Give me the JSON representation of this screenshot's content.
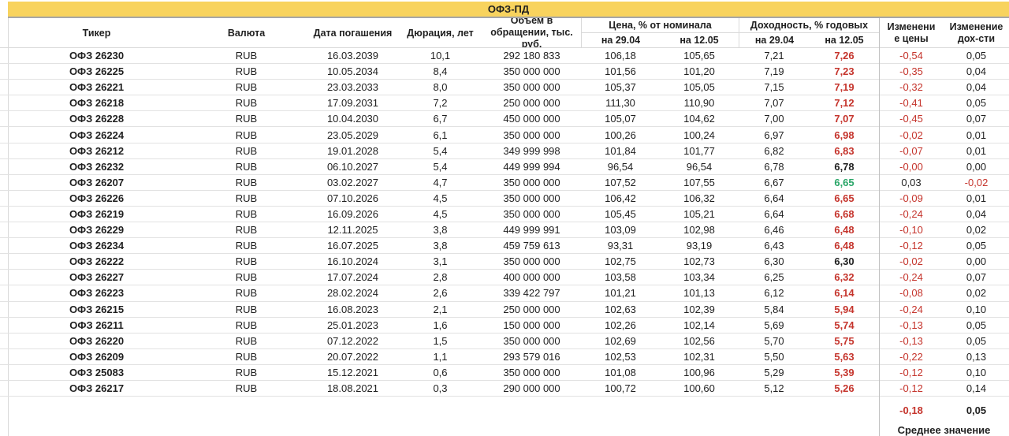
{
  "title": "ОФЗ-ПД",
  "colors": {
    "accent_titlebar": "#f8d35e",
    "negative_red": "#c5342c",
    "positive_green": "#28a567",
    "text": "#1f1f1f"
  },
  "table": {
    "headers": {
      "ticker": "Тикер",
      "currency": "Валюта",
      "maturity": "Дата погашения",
      "duration": "Дюрация, лет",
      "volume": "Объем в\nобращении, тыс.\nруб.",
      "price_group": "Цена, % от номинала",
      "yield_group": "Доходность, % годовых",
      "price_on_2904": "на 29.04",
      "price_on_1205": "на 12.05",
      "yield_on_2904": "на 29.04",
      "yield_on_1205": "на 12.05",
      "price_change": "Изменени\nе цены",
      "yield_change": "Изменение\nдох-сти"
    },
    "rows": [
      {
        "ticker": "ОФЗ 26230",
        "currency": "RUB",
        "maturity": "16.03.2039",
        "duration": "10,1",
        "volume": "292 180 833",
        "price_2904": "106,18",
        "price_1205": "105,65",
        "yield_2904": "7,21",
        "yield_1205": "7,26",
        "yield_1205_color": "red",
        "price_change": "-0,54",
        "price_change_color": "red",
        "yield_change": "0,05",
        "yield_change_color": "black"
      },
      {
        "ticker": "ОФЗ 26225",
        "currency": "RUB",
        "maturity": "10.05.2034",
        "duration": "8,4",
        "volume": "350 000 000",
        "price_2904": "101,56",
        "price_1205": "101,20",
        "yield_2904": "7,19",
        "yield_1205": "7,23",
        "yield_1205_color": "red",
        "price_change": "-0,35",
        "price_change_color": "red",
        "yield_change": "0,04",
        "yield_change_color": "black"
      },
      {
        "ticker": "ОФЗ 26221",
        "currency": "RUB",
        "maturity": "23.03.2033",
        "duration": "8,0",
        "volume": "350 000 000",
        "price_2904": "105,37",
        "price_1205": "105,05",
        "yield_2904": "7,15",
        "yield_1205": "7,19",
        "yield_1205_color": "red",
        "price_change": "-0,32",
        "price_change_color": "red",
        "yield_change": "0,04",
        "yield_change_color": "black"
      },
      {
        "ticker": "ОФЗ 26218",
        "currency": "RUB",
        "maturity": "17.09.2031",
        "duration": "7,2",
        "volume": "250 000 000",
        "price_2904": "111,30",
        "price_1205": "110,90",
        "yield_2904": "7,07",
        "yield_1205": "7,12",
        "yield_1205_color": "red",
        "price_change": "-0,41",
        "price_change_color": "red",
        "yield_change": "0,05",
        "yield_change_color": "black"
      },
      {
        "ticker": "ОФЗ 26228",
        "currency": "RUB",
        "maturity": "10.04.2030",
        "duration": "6,7",
        "volume": "450 000 000",
        "price_2904": "105,07",
        "price_1205": "104,62",
        "yield_2904": "7,00",
        "yield_1205": "7,07",
        "yield_1205_color": "red",
        "price_change": "-0,45",
        "price_change_color": "red",
        "yield_change": "0,07",
        "yield_change_color": "black"
      },
      {
        "ticker": "ОФЗ 26224",
        "currency": "RUB",
        "maturity": "23.05.2029",
        "duration": "6,1",
        "volume": "350 000 000",
        "price_2904": "100,26",
        "price_1205": "100,24",
        "yield_2904": "6,97",
        "yield_1205": "6,98",
        "yield_1205_color": "red",
        "price_change": "-0,02",
        "price_change_color": "red",
        "yield_change": "0,01",
        "yield_change_color": "black"
      },
      {
        "ticker": "ОФЗ 26212",
        "currency": "RUB",
        "maturity": "19.01.2028",
        "duration": "5,4",
        "volume": "349 999 998",
        "price_2904": "101,84",
        "price_1205": "101,77",
        "yield_2904": "6,82",
        "yield_1205": "6,83",
        "yield_1205_color": "red",
        "price_change": "-0,07",
        "price_change_color": "red",
        "yield_change": "0,01",
        "yield_change_color": "black"
      },
      {
        "ticker": "ОФЗ 26232",
        "currency": "RUB",
        "maturity": "06.10.2027",
        "duration": "5,4",
        "volume": "449 999 994",
        "price_2904": "96,54",
        "price_1205": "96,54",
        "yield_2904": "6,78",
        "yield_1205": "6,78",
        "yield_1205_color": "black",
        "price_change": "-0,00",
        "price_change_color": "red",
        "yield_change": "0,00",
        "yield_change_color": "black"
      },
      {
        "ticker": "ОФЗ 26207",
        "currency": "RUB",
        "maturity": "03.02.2027",
        "duration": "4,7",
        "volume": "350 000 000",
        "price_2904": "107,52",
        "price_1205": "107,55",
        "yield_2904": "6,67",
        "yield_1205": "6,65",
        "yield_1205_color": "green",
        "price_change": "0,03",
        "price_change_color": "black",
        "yield_change": "-0,02",
        "yield_change_color": "red"
      },
      {
        "ticker": "ОФЗ 26226",
        "currency": "RUB",
        "maturity": "07.10.2026",
        "duration": "4,5",
        "volume": "350 000 000",
        "price_2904": "106,42",
        "price_1205": "106,32",
        "yield_2904": "6,64",
        "yield_1205": "6,65",
        "yield_1205_color": "red",
        "price_change": "-0,09",
        "price_change_color": "red",
        "yield_change": "0,01",
        "yield_change_color": "black"
      },
      {
        "ticker": "ОФЗ 26219",
        "currency": "RUB",
        "maturity": "16.09.2026",
        "duration": "4,5",
        "volume": "350 000 000",
        "price_2904": "105,45",
        "price_1205": "105,21",
        "yield_2904": "6,64",
        "yield_1205": "6,68",
        "yield_1205_color": "red",
        "price_change": "-0,24",
        "price_change_color": "red",
        "yield_change": "0,04",
        "yield_change_color": "black"
      },
      {
        "ticker": "ОФЗ 26229",
        "currency": "RUB",
        "maturity": "12.11.2025",
        "duration": "3,8",
        "volume": "449 999 991",
        "price_2904": "103,09",
        "price_1205": "102,98",
        "yield_2904": "6,46",
        "yield_1205": "6,48",
        "yield_1205_color": "red",
        "price_change": "-0,10",
        "price_change_color": "red",
        "yield_change": "0,02",
        "yield_change_color": "black"
      },
      {
        "ticker": "ОФЗ 26234",
        "currency": "RUB",
        "maturity": "16.07.2025",
        "duration": "3,8",
        "volume": "459 759 613",
        "price_2904": "93,31",
        "price_1205": "93,19",
        "yield_2904": "6,43",
        "yield_1205": "6,48",
        "yield_1205_color": "red",
        "price_change": "-0,12",
        "price_change_color": "red",
        "yield_change": "0,05",
        "yield_change_color": "black"
      },
      {
        "ticker": "ОФЗ 26222",
        "currency": "RUB",
        "maturity": "16.10.2024",
        "duration": "3,1",
        "volume": "350 000 000",
        "price_2904": "102,75",
        "price_1205": "102,73",
        "yield_2904": "6,30",
        "yield_1205": "6,30",
        "yield_1205_color": "black",
        "price_change": "-0,02",
        "price_change_color": "red",
        "yield_change": "0,00",
        "yield_change_color": "black"
      },
      {
        "ticker": "ОФЗ 26227",
        "currency": "RUB",
        "maturity": "17.07.2024",
        "duration": "2,8",
        "volume": "400 000 000",
        "price_2904": "103,58",
        "price_1205": "103,34",
        "yield_2904": "6,25",
        "yield_1205": "6,32",
        "yield_1205_color": "red",
        "price_change": "-0,24",
        "price_change_color": "red",
        "yield_change": "0,07",
        "yield_change_color": "black"
      },
      {
        "ticker": "ОФЗ 26223",
        "currency": "RUB",
        "maturity": "28.02.2024",
        "duration": "2,6",
        "volume": "339 422 797",
        "price_2904": "101,21",
        "price_1205": "101,13",
        "yield_2904": "6,12",
        "yield_1205": "6,14",
        "yield_1205_color": "red",
        "price_change": "-0,08",
        "price_change_color": "red",
        "yield_change": "0,02",
        "yield_change_color": "black"
      },
      {
        "ticker": "ОФЗ 26215",
        "currency": "RUB",
        "maturity": "16.08.2023",
        "duration": "2,1",
        "volume": "250 000 000",
        "price_2904": "102,63",
        "price_1205": "102,39",
        "yield_2904": "5,84",
        "yield_1205": "5,94",
        "yield_1205_color": "red",
        "price_change": "-0,24",
        "price_change_color": "red",
        "yield_change": "0,10",
        "yield_change_color": "black"
      },
      {
        "ticker": "ОФЗ 26211",
        "currency": "RUB",
        "maturity": "25.01.2023",
        "duration": "1,6",
        "volume": "150 000 000",
        "price_2904": "102,26",
        "price_1205": "102,14",
        "yield_2904": "5,69",
        "yield_1205": "5,74",
        "yield_1205_color": "red",
        "price_change": "-0,13",
        "price_change_color": "red",
        "yield_change": "0,05",
        "yield_change_color": "black"
      },
      {
        "ticker": "ОФЗ 26220",
        "currency": "RUB",
        "maturity": "07.12.2022",
        "duration": "1,5",
        "volume": "350 000 000",
        "price_2904": "102,69",
        "price_1205": "102,56",
        "yield_2904": "5,70",
        "yield_1205": "5,75",
        "yield_1205_color": "red",
        "price_change": "-0,13",
        "price_change_color": "red",
        "yield_change": "0,05",
        "yield_change_color": "black"
      },
      {
        "ticker": "ОФЗ 26209",
        "currency": "RUB",
        "maturity": "20.07.2022",
        "duration": "1,1",
        "volume": "293 579 016",
        "price_2904": "102,53",
        "price_1205": "102,31",
        "yield_2904": "5,50",
        "yield_1205": "5,63",
        "yield_1205_color": "red",
        "price_change": "-0,22",
        "price_change_color": "red",
        "yield_change": "0,13",
        "yield_change_color": "black"
      },
      {
        "ticker": "ОФЗ 25083",
        "currency": "RUB",
        "maturity": "15.12.2021",
        "duration": "0,6",
        "volume": "350 000 000",
        "price_2904": "101,08",
        "price_1205": "100,96",
        "yield_2904": "5,29",
        "yield_1205": "5,39",
        "yield_1205_color": "red",
        "price_change": "-0,12",
        "price_change_color": "red",
        "yield_change": "0,10",
        "yield_change_color": "black"
      },
      {
        "ticker": "ОФЗ 26217",
        "currency": "RUB",
        "maturity": "18.08.2021",
        "duration": "0,3",
        "volume": "290 000 000",
        "price_2904": "100,72",
        "price_1205": "100,60",
        "yield_2904": "5,12",
        "yield_1205": "5,26",
        "yield_1205_color": "red",
        "price_change": "-0,12",
        "price_change_color": "red",
        "yield_change": "0,14",
        "yield_change_color": "black"
      }
    ],
    "summary": {
      "price_change_avg": "-0,18",
      "yield_change_avg": "0,05",
      "label": "Среднее значение"
    }
  }
}
